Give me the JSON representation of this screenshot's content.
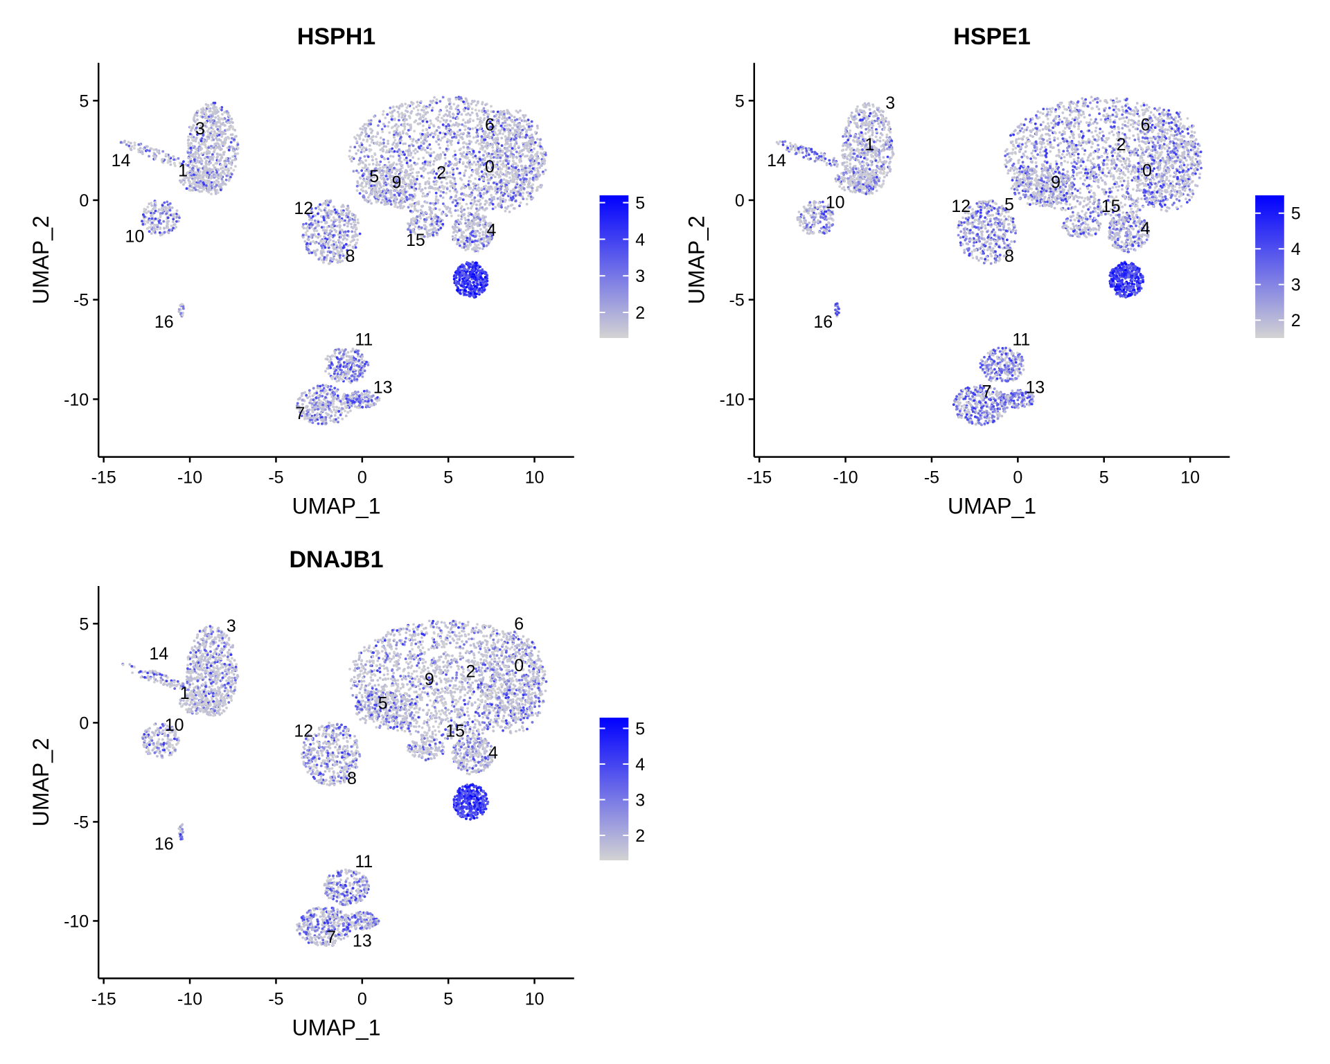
{
  "chart_data": [
    {
      "type": "scatter",
      "title": "HSPH1",
      "xlabel": "UMAP_1",
      "ylabel": "UMAP_2",
      "xlim": [
        -15.3,
        12.3
      ],
      "ylim": [
        -12.9,
        6.9
      ],
      "xticks": [
        -15,
        -10,
        -5,
        0,
        5,
        10
      ],
      "yticks": [
        5,
        0,
        -5,
        -10
      ],
      "legend": {
        "position": "right",
        "ticks": [
          5,
          4,
          3,
          2
        ],
        "min": 1.3,
        "max": 5.2,
        "low_color": "#d3d3d3",
        "high_color": "#0000ff"
      },
      "hotspot": {
        "cluster": "4",
        "level": 5.0
      },
      "cluster_labels": [
        {
          "label": "3",
          "x": -9.4,
          "y": 3.3
        },
        {
          "label": "14",
          "x": -14.0,
          "y": 1.7
        },
        {
          "label": "1",
          "x": -10.4,
          "y": 1.2
        },
        {
          "label": "10",
          "x": -13.2,
          "y": -2.1
        },
        {
          "label": "16",
          "x": -11.5,
          "y": -6.4
        },
        {
          "label": "6",
          "x": 7.4,
          "y": 3.5
        },
        {
          "label": "2",
          "x": 4.6,
          "y": 1.1
        },
        {
          "label": "0",
          "x": 7.4,
          "y": 1.4
        },
        {
          "label": "5",
          "x": 0.7,
          "y": 0.9
        },
        {
          "label": "9",
          "x": 2.0,
          "y": 0.6
        },
        {
          "label": "12",
          "x": -3.4,
          "y": -0.7
        },
        {
          "label": "8",
          "x": -0.7,
          "y": -3.1
        },
        {
          "label": "15",
          "x": 3.1,
          "y": -2.3
        },
        {
          "label": "4",
          "x": 7.5,
          "y": -1.8
        },
        {
          "label": "11",
          "x": 0.1,
          "y": -7.3
        },
        {
          "label": "13",
          "x": 1.2,
          "y": -9.7
        },
        {
          "label": "7",
          "x": -3.6,
          "y": -11.0
        }
      ]
    },
    {
      "type": "scatter",
      "title": "HSPE1",
      "xlabel": "UMAP_1",
      "ylabel": "UMAP_2",
      "xlim": [
        -15.3,
        12.3
      ],
      "ylim": [
        -12.9,
        6.9
      ],
      "xticks": [
        -15,
        -10,
        -5,
        0,
        5,
        10
      ],
      "yticks": [
        5,
        0,
        -5,
        -10
      ],
      "legend": {
        "position": "right",
        "ticks": [
          5,
          4,
          3,
          2
        ],
        "min": 1.5,
        "max": 5.5,
        "low_color": "#d3d3d3",
        "high_color": "#0000ff"
      },
      "hotspot": {
        "cluster": "4",
        "level": 4.6
      },
      "cluster_labels": [
        {
          "label": "3",
          "x": -7.4,
          "y": 4.6
        },
        {
          "label": "1",
          "x": -8.6,
          "y": 2.5
        },
        {
          "label": "14",
          "x": -14.0,
          "y": 1.7
        },
        {
          "label": "10",
          "x": -10.6,
          "y": -0.4
        },
        {
          "label": "16",
          "x": -11.3,
          "y": -6.4
        },
        {
          "label": "6",
          "x": 7.4,
          "y": 3.5
        },
        {
          "label": "2",
          "x": 6.0,
          "y": 2.5
        },
        {
          "label": "0",
          "x": 7.5,
          "y": 1.2
        },
        {
          "label": "9",
          "x": 2.2,
          "y": 0.6
        },
        {
          "label": "12",
          "x": -3.3,
          "y": -0.6
        },
        {
          "label": "5",
          "x": -0.5,
          "y": -0.5
        },
        {
          "label": "15",
          "x": 5.4,
          "y": -0.6
        },
        {
          "label": "4",
          "x": 7.4,
          "y": -1.7
        },
        {
          "label": "8",
          "x": -0.5,
          "y": -3.1
        },
        {
          "label": "11",
          "x": 0.2,
          "y": -7.3
        },
        {
          "label": "13",
          "x": 1.0,
          "y": -9.7
        },
        {
          "label": "7",
          "x": -1.8,
          "y": -9.9
        }
      ]
    },
    {
      "type": "scatter",
      "title": "DNAJB1",
      "xlabel": "UMAP_1",
      "ylabel": "UMAP_2",
      "xlim": [
        -15.3,
        12.3
      ],
      "ylim": [
        -12.9,
        6.9
      ],
      "xticks": [
        -15,
        -10,
        -5,
        0,
        5,
        10
      ],
      "yticks": [
        5,
        0,
        -5,
        -10
      ],
      "legend": {
        "position": "right",
        "ticks": [
          5,
          4,
          3,
          2
        ],
        "min": 1.3,
        "max": 5.3,
        "low_color": "#d3d3d3",
        "high_color": "#0000ff"
      },
      "hotspot": {
        "cluster": "4",
        "level": 4.6
      },
      "cluster_labels": [
        {
          "label": "3",
          "x": -7.6,
          "y": 4.6
        },
        {
          "label": "14",
          "x": -11.8,
          "y": 3.2
        },
        {
          "label": "1",
          "x": -10.3,
          "y": 1.2
        },
        {
          "label": "10",
          "x": -10.9,
          "y": -0.4
        },
        {
          "label": "16",
          "x": -11.5,
          "y": -6.4
        },
        {
          "label": "6",
          "x": 9.1,
          "y": 4.7
        },
        {
          "label": "0",
          "x": 9.1,
          "y": 2.6
        },
        {
          "label": "2",
          "x": 6.3,
          "y": 2.3
        },
        {
          "label": "9",
          "x": 3.9,
          "y": 1.9
        },
        {
          "label": "5",
          "x": 1.2,
          "y": 0.7
        },
        {
          "label": "12",
          "x": -3.4,
          "y": -0.7
        },
        {
          "label": "15",
          "x": 5.4,
          "y": -0.7
        },
        {
          "label": "4",
          "x": 7.6,
          "y": -1.8
        },
        {
          "label": "8",
          "x": -0.6,
          "y": -3.1
        },
        {
          "label": "11",
          "x": 0.1,
          "y": -7.3
        },
        {
          "label": "7",
          "x": -1.8,
          "y": -11.1
        },
        {
          "label": "13",
          "x": 0.0,
          "y": -11.3
        }
      ]
    }
  ]
}
